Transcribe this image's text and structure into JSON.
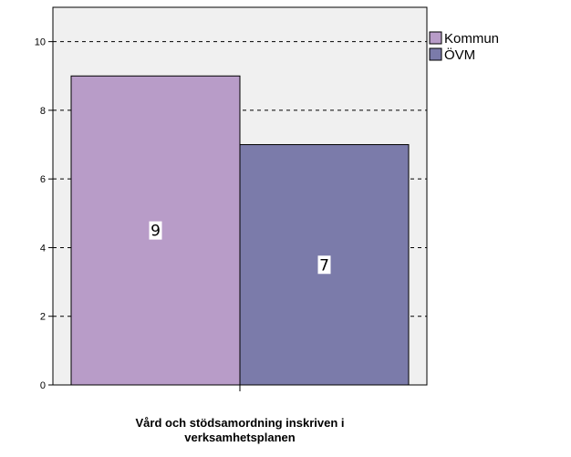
{
  "chart_data": {
    "type": "bar",
    "categories": [
      "Vård och stödsamordning inskriven i verksamhetsplanen"
    ],
    "series": [
      {
        "name": "Kommun",
        "values": [
          9
        ],
        "color": "#b89cc8"
      },
      {
        "name": "ÖVM",
        "values": [
          7
        ],
        "color": "#7b7baa"
      }
    ],
    "title": "",
    "xlabel_lines": [
      "Vård och stödsamordning inskriven i",
      "verksamhetsplanen"
    ],
    "ylabel": "",
    "ylim": [
      0,
      11
    ],
    "yticks": [
      0,
      2,
      4,
      6,
      8,
      10
    ],
    "grid": "dashed horizontal at 2,4,6,8,10",
    "legend_position": "top-right",
    "plot_background": "#f0f0f0"
  }
}
